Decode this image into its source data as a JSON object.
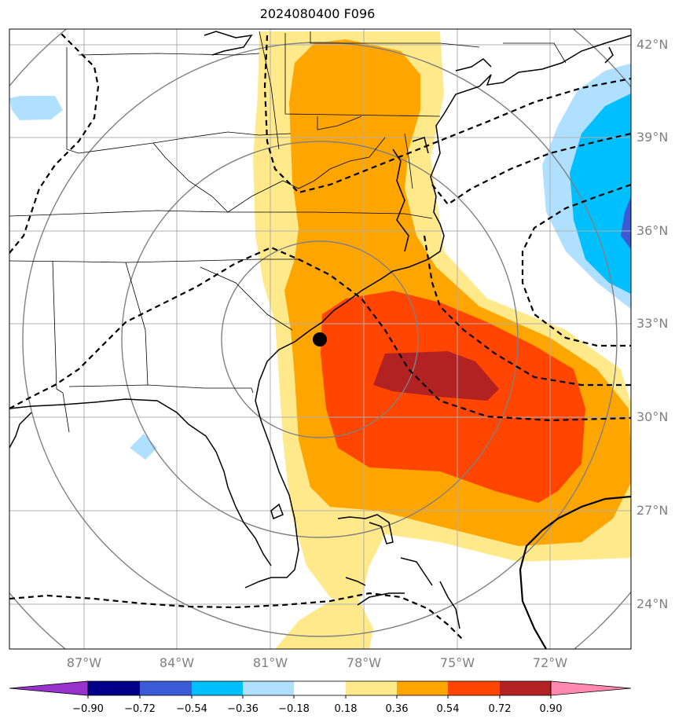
{
  "title": "2024080400 F096",
  "lat_labels": [
    "42°N",
    "39°N",
    "36°N",
    "33°N",
    "30°N",
    "27°N",
    "24°N"
  ],
  "lon_labels": [
    "87°W",
    "84°W",
    "81°W",
    "78°W",
    "75°W",
    "72°W"
  ],
  "colorbar": {
    "ticks": [
      "−0.90",
      "−0.72",
      "−0.54",
      "−0.36",
      "−0.18",
      "0.18",
      "0.36",
      "0.54",
      "0.72",
      "0.90"
    ],
    "colors": [
      "#9932cc",
      "#00008b",
      "#3b5bd6",
      "#00bfff",
      "#b0e0ff",
      "#ffffff",
      "#ffe98a",
      "#ffa500",
      "#ff4500",
      "#b22222",
      "#ff88b0"
    ]
  },
  "map": {
    "marker": "storm-center",
    "fill_colors": {
      "light_yellow": "#ffe98a",
      "orange": "#ffa500",
      "red_orange": "#ff4500",
      "dark_red": "#b22222",
      "light_blue": "#b0e0ff",
      "sky_blue": "#00bfff",
      "royal_blue": "#3b5bd6"
    }
  }
}
